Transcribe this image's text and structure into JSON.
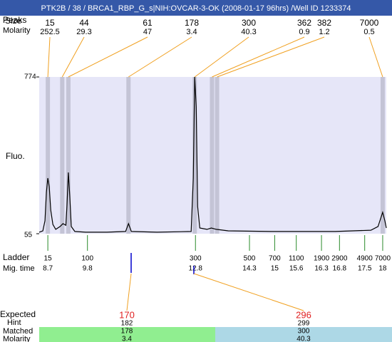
{
  "title": "PTK2B / 38 / BRCA1_RBP_G_s|NIH:OVCAR-3-OK (2008-01-17 96hrs) /Well ID 1233374",
  "labels": {
    "peaks": "Peaks",
    "size": "Size",
    "molarity": "Molarity",
    "fluo": "Fluo.",
    "ladder": "Ladder",
    "mig_time": "Mig. time",
    "expected": "Expected",
    "hint": "Hint",
    "matched": "Matched",
    "matched_molarity": "Molarity"
  },
  "chart_data": {
    "type": "line",
    "color": "#000000",
    "xlim": [
      8.46,
      18.1
    ],
    "ylim": [
      55,
      774
    ],
    "yticks": [
      55,
      774
    ],
    "x": [
      8.46,
      8.56,
      8.62,
      8.66,
      8.7,
      8.74,
      8.78,
      8.84,
      8.92,
      9.04,
      9.12,
      9.2,
      9.23,
      9.27,
      9.31,
      9.35,
      9.45,
      9.75,
      10.34,
      10.86,
      10.94,
      11.02,
      11.73,
      12.68,
      12.74,
      12.78,
      12.82,
      12.86,
      12.92,
      13.12,
      13.24,
      13.38,
      13.71,
      14.9,
      16.68,
      17.67,
      17.87,
      18.0,
      18.06,
      18.1
    ],
    "values": [
      62,
      68,
      114,
      245,
      310,
      271,
      163,
      97,
      75,
      88,
      101,
      94,
      180,
      336,
      229,
      88,
      65,
      62,
      62,
      65,
      101,
      65,
      62,
      65,
      310,
      774,
      637,
      180,
      81,
      75,
      81,
      75,
      68,
      65,
      65,
      71,
      88,
      153,
      114,
      81
    ],
    "peaks": {
      "size": [
        15,
        44,
        61,
        178,
        300,
        362,
        382,
        7000
      ],
      "molarity": [
        252.5,
        29.3,
        47,
        3.4,
        40.3,
        0.9,
        1.2,
        0.5
      ],
      "time": [
        8.7,
        9.1,
        9.27,
        10.94,
        12.78,
        13.26,
        13.4,
        18.0
      ]
    },
    "ladder": {
      "size": [
        15,
        100,
        300,
        500,
        700,
        1100,
        1900,
        2900,
        4900,
        7000
      ],
      "time": [
        8.7,
        9.8,
        12.8,
        14.3,
        15,
        15.6,
        16.3,
        16.8,
        17.5,
        18
      ]
    },
    "expected": [
      {
        "expected": 170,
        "hint": 182,
        "matched": 178,
        "molarity": 3.4
      },
      {
        "expected": 296,
        "hint": 299,
        "matched": 300,
        "molarity": 40.3
      }
    ]
  }
}
